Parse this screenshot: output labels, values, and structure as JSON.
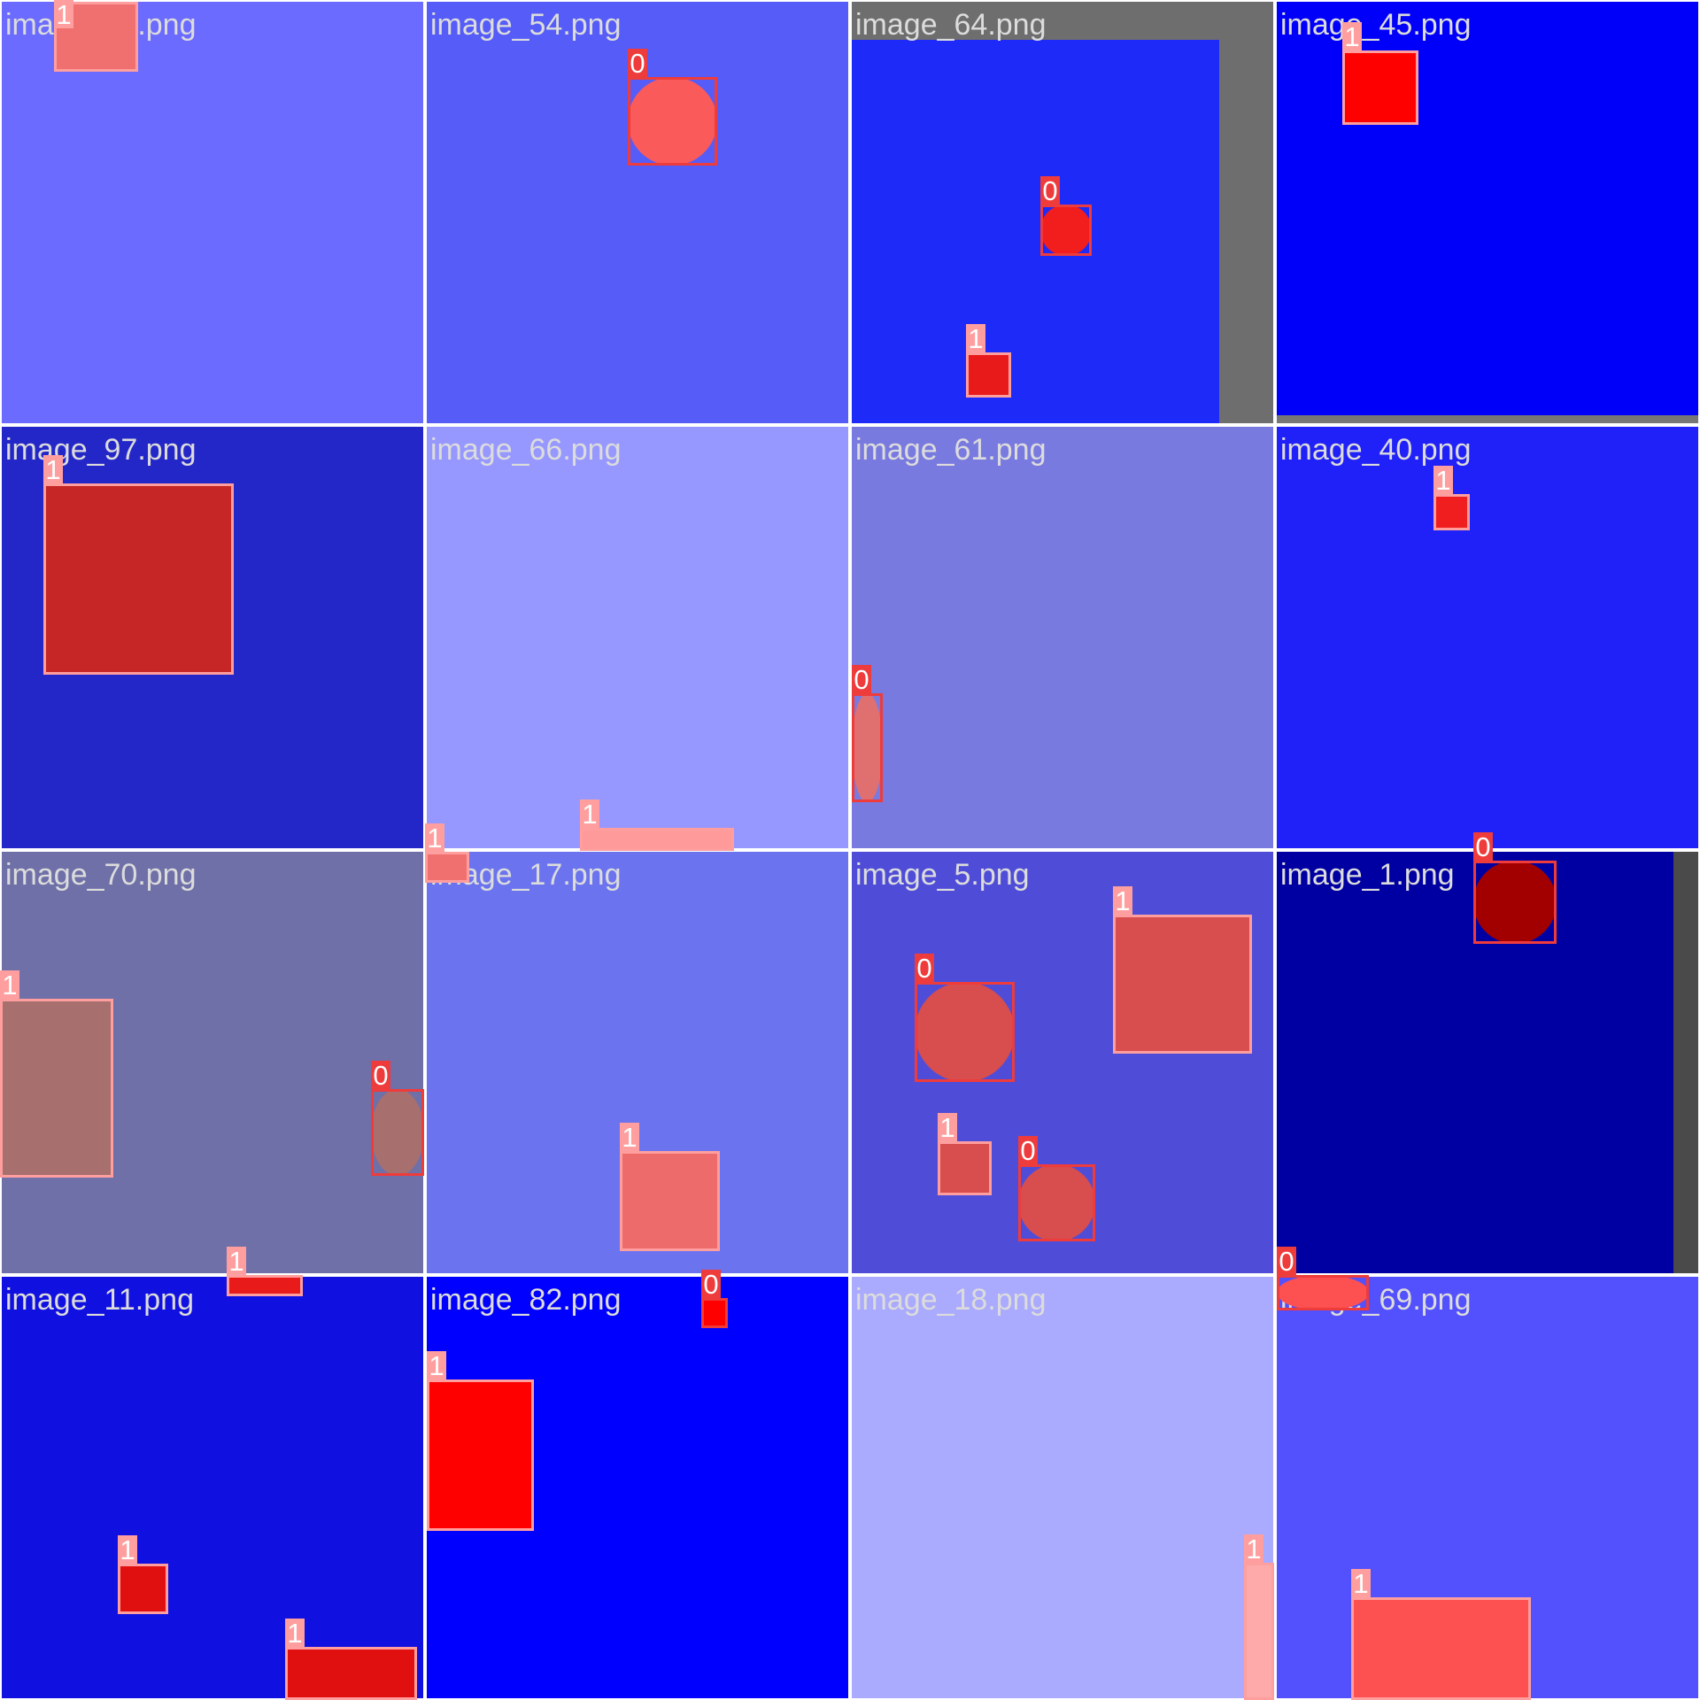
{
  "mosaic": {
    "tiles": [
      {
        "filename": "image_27.png",
        "background": "#6b6bff",
        "objects": [
          {
            "class_id": "1",
            "shape": "square",
            "fill": "#f07070"
          }
        ]
      },
      {
        "filename": "image_54.png",
        "background": "#555cf8",
        "objects": [
          {
            "class_id": "0",
            "shape": "circle",
            "fill": "#fa5a5a"
          }
        ]
      },
      {
        "filename": "image_64.png",
        "background": "#1e2af8",
        "frame": "#6e6e6e",
        "objects": [
          {
            "class_id": "0",
            "shape": "circle",
            "fill": "#f21e1e"
          },
          {
            "class_id": "1",
            "shape": "square",
            "fill": "#e81a1a"
          }
        ]
      },
      {
        "filename": "image_45.png",
        "background": "#0000fa",
        "frame": "#777777",
        "objects": [
          {
            "class_id": "1",
            "shape": "square",
            "fill": "#ff0000"
          }
        ]
      },
      {
        "filename": "image_97.png",
        "background": "#2427c8",
        "objects": [
          {
            "class_id": "1",
            "shape": "square",
            "fill": "#c62626"
          }
        ]
      },
      {
        "filename": "image_66.png",
        "background": "#9698ff",
        "objects": [
          {
            "class_id": "1",
            "shape": "square",
            "fill": "#f07070"
          },
          {
            "class_id": "1",
            "shape": "square",
            "fill": "#fe9a9a"
          }
        ]
      },
      {
        "filename": "image_61.png",
        "background": "#797ae0",
        "objects": [
          {
            "class_id": "0",
            "shape": "circle",
            "fill": "#e07070"
          }
        ]
      },
      {
        "filename": "image_40.png",
        "background": "#2020f8",
        "objects": [
          {
            "class_id": "1",
            "shape": "square",
            "fill": "#f01e1e"
          }
        ]
      },
      {
        "filename": "image_70.png",
        "background": "#6f70a8",
        "objects": [
          {
            "class_id": "1",
            "shape": "square",
            "fill": "#a86f6f"
          },
          {
            "class_id": "0",
            "shape": "circle",
            "fill": "#a86f6f"
          },
          {
            "class_id": "1",
            "shape": "square",
            "fill": "#e81a1a"
          }
        ]
      },
      {
        "filename": "image_17.png",
        "background": "#6b74ee",
        "objects": [
          {
            "class_id": "1",
            "shape": "square",
            "fill": "#ee6b6b"
          }
        ]
      },
      {
        "filename": "image_5.png",
        "background": "#4f4dd8",
        "objects": [
          {
            "class_id": "1",
            "shape": "square",
            "fill": "#d84d4d"
          },
          {
            "class_id": "0",
            "shape": "circle",
            "fill": "#d84d4d"
          },
          {
            "class_id": "1",
            "shape": "square",
            "fill": "#d84d4d"
          },
          {
            "class_id": "0",
            "shape": "circle",
            "fill": "#d84d4d"
          }
        ]
      },
      {
        "filename": "image_1.png",
        "background": "#0000a2",
        "frame": "#4a4a4a",
        "objects": [
          {
            "class_id": "0",
            "shape": "circle",
            "fill": "#a20000"
          }
        ]
      },
      {
        "filename": "image_11.png",
        "background": "#1010e0",
        "objects": [
          {
            "class_id": "1",
            "shape": "square",
            "fill": "#e01010"
          },
          {
            "class_id": "1",
            "shape": "square",
            "fill": "#e01010"
          }
        ]
      },
      {
        "filename": "image_82.png",
        "background": "#0000fe",
        "objects": [
          {
            "class_id": "0",
            "shape": "square",
            "fill": "#fe0000"
          },
          {
            "class_id": "1",
            "shape": "square",
            "fill": "#fe0000"
          }
        ]
      },
      {
        "filename": "image_18.png",
        "background": "#aaaafe",
        "objects": [
          {
            "class_id": "1",
            "shape": "square",
            "fill": "#feaaaa"
          }
        ]
      },
      {
        "filename": "image_69.png",
        "background": "#5350fd",
        "objects": [
          {
            "class_id": "0",
            "shape": "circle",
            "fill": "#fd5050"
          },
          {
            "class_id": "1",
            "shape": "square",
            "fill": "#fd5050"
          }
        ]
      }
    ],
    "class_colors": {
      "0": "#ee3b3b",
      "1": "#ff9e9e"
    }
  }
}
